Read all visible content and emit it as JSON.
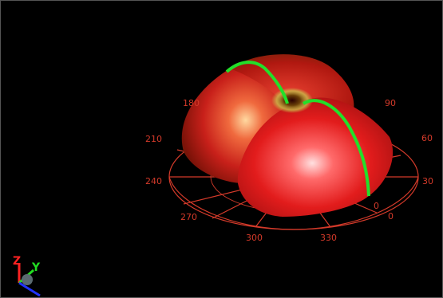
{
  "viewer": {
    "background": "#000000",
    "pattern_color": "#e43a2a",
    "cut_color": "#22e02a",
    "dial_color": "#d43a2a",
    "azimuth_labels": [
      "0",
      "30",
      "60",
      "90",
      "180",
      "210",
      "240",
      "270",
      "300",
      "330"
    ],
    "extra_marker": "0",
    "triad": {
      "z_label": "Z",
      "y_label": "Y",
      "x_color": "#2233ff",
      "y_color": "#22dd22",
      "z_color": "#ff2222"
    }
  }
}
